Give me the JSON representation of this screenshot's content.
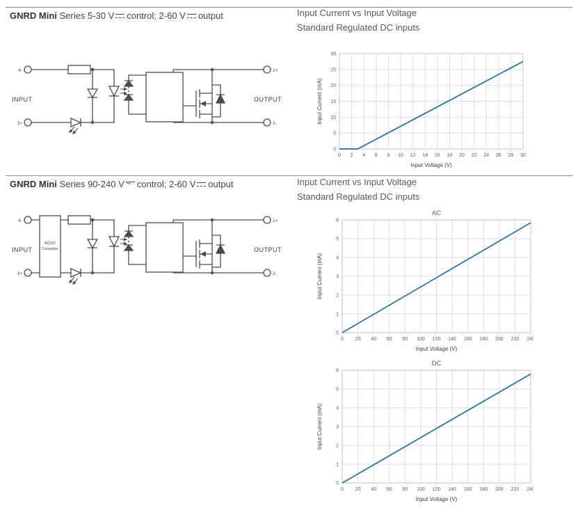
{
  "page": {
    "sections": [
      {
        "title": {
          "brand": "GNRD Mini",
          "series": "Series 5-30 V",
          "control_symbol": "dc",
          "mid": "control; 2-60 V",
          "output_symbol": "dc",
          "end": "output"
        },
        "chart_header": {
          "line1": "Input Current vs Input Voltage",
          "line2": "Standard Regulated DC inputs"
        },
        "circuit": {
          "input_label": "INPUT",
          "output_label": "OUTPUT",
          "pin_top_left": "4-",
          "pin_bottom_left": "3+",
          "pin_top_right": "1+",
          "pin_bottom_right": "2-"
        }
      },
      {
        "title": {
          "brand": "GNRD Mini",
          "series": "Series 90-240 V",
          "control_symbol": "ac-dc",
          "mid": "control; 2-60 V",
          "output_symbol": "dc",
          "end": "output"
        },
        "chart_header": {
          "line1": "Input Current vs Input Voltage",
          "line2": "Standard Regulated DC inputs"
        },
        "circuit": {
          "input_label": "INPUT",
          "output_label": "OUTPUT",
          "pin_top_left": "4-",
          "pin_bottom_left": "3+",
          "pin_top_right": "1+",
          "pin_bottom_right": "2-",
          "converter_line1": "AC/DC",
          "converter_line2": "Converter"
        }
      }
    ]
  },
  "chart_data": [
    {
      "type": "line",
      "title": "",
      "xlabel": "Input Voltage (V)",
      "ylabel": "Input Current (mA)",
      "xlim": [
        0,
        30
      ],
      "ylim": [
        0,
        30
      ],
      "xtick_step": 2,
      "ytick_step": 5,
      "grid": true,
      "legend": "none",
      "line_color": "#226e9e",
      "series": [
        {
          "x": [
            0,
            3,
            30
          ],
          "y": [
            0,
            0,
            27.5
          ]
        }
      ]
    },
    {
      "type": "line",
      "title": "AC",
      "xlabel": "Input Voltage (V)",
      "ylabel": "Input Current (mA)",
      "xlim": [
        0,
        240
      ],
      "ylim": [
        0,
        6
      ],
      "xtick_step": 20,
      "ytick_step": 1,
      "grid": true,
      "legend": "none",
      "line_color": "#226e9e",
      "series": [
        {
          "x": [
            0,
            240
          ],
          "y": [
            0,
            5.85
          ]
        }
      ]
    },
    {
      "type": "line",
      "title": "DC",
      "xlabel": "Input Voltage (V)",
      "ylabel": "Input Current (mA)",
      "xlim": [
        0,
        240
      ],
      "ylim": [
        0,
        6
      ],
      "xtick_step": 20,
      "ytick_step": 1,
      "grid": true,
      "legend": "none",
      "line_color": "#226e9e",
      "series": [
        {
          "x": [
            0,
            240
          ],
          "y": [
            0,
            5.8
          ]
        }
      ]
    }
  ]
}
